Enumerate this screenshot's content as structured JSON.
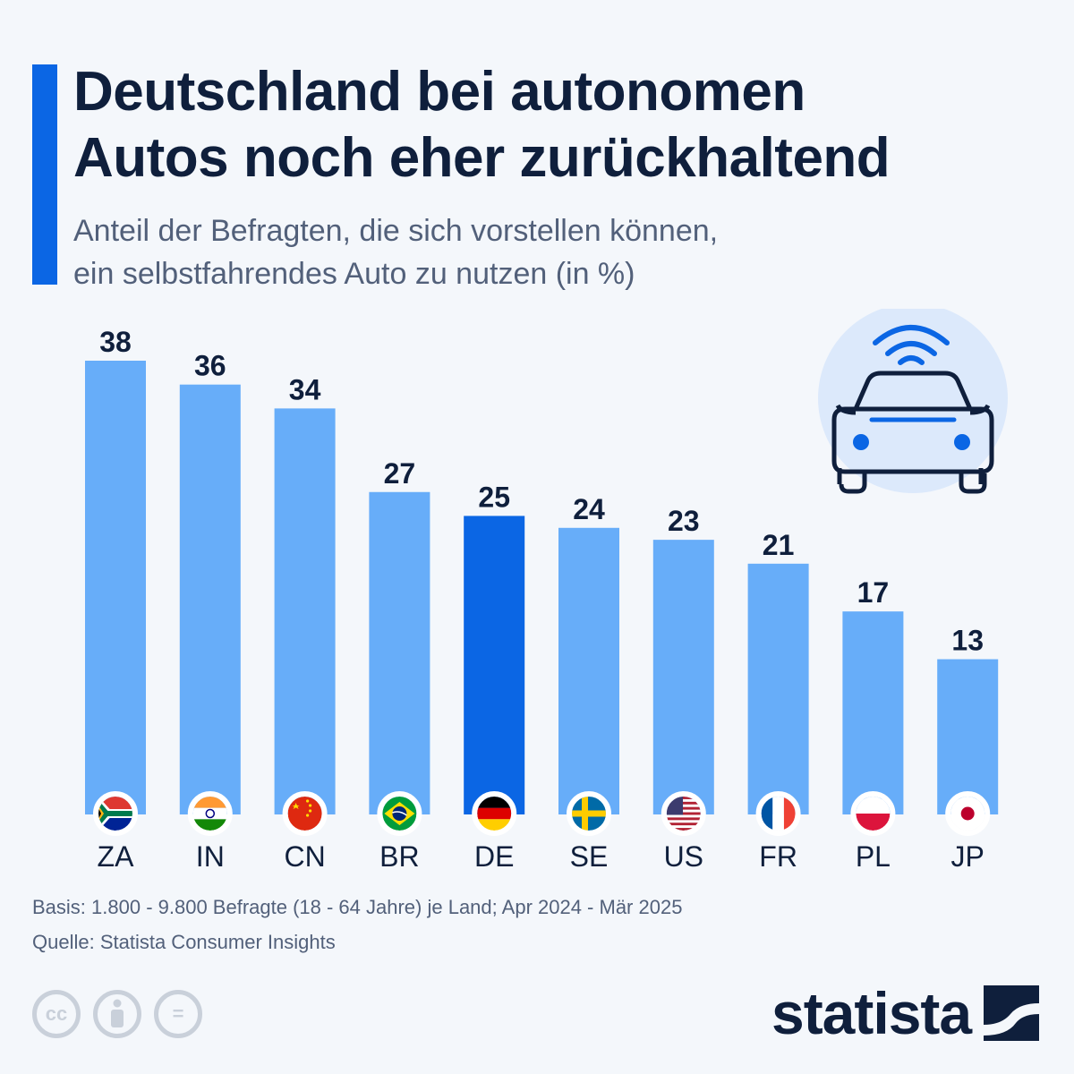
{
  "header": {
    "title_line1": "Deutschland bei autonomen",
    "title_line2": "Autos noch eher zurückhaltend",
    "subtitle_line1": "Anteil der Befragten, die sich vorstellen können,",
    "subtitle_line2": "ein selbstfahrendes Auto zu nutzen (in %)"
  },
  "chart_data": {
    "type": "bar",
    "categories": [
      "ZA",
      "IN",
      "CN",
      "BR",
      "DE",
      "SE",
      "US",
      "FR",
      "PL",
      "JP"
    ],
    "values": [
      38,
      36,
      34,
      27,
      25,
      24,
      23,
      21,
      17,
      13
    ],
    "highlight_category": "DE",
    "title": "Deutschland bei autonomen Autos noch eher zurückhaltend",
    "xlabel": "",
    "ylabel": "",
    "ylim": [
      0,
      38
    ],
    "grid": false,
    "legend": "none",
    "colors": {
      "bar": "#67adf9",
      "highlight": "#0b66e4",
      "label": "#0f1f3c"
    },
    "flags": [
      "flag-za-icon",
      "flag-in-icon",
      "flag-cn-icon",
      "flag-br-icon",
      "flag-de-icon",
      "flag-se-icon",
      "flag-us-icon",
      "flag-fr-icon",
      "flag-pl-icon",
      "flag-jp-icon"
    ]
  },
  "footer": {
    "basis": "Basis: 1.800 - 9.800 Befragte (18 - 64 Jahre) je Land; Apr 2024 - Mär 2025",
    "source": "Quelle: Statista Consumer Insights",
    "license_cc": "cc",
    "license_equals": "="
  },
  "brand": {
    "name": "statista"
  },
  "icons": {
    "car": "self-driving-car-icon",
    "wifi": "wifi-icon"
  }
}
